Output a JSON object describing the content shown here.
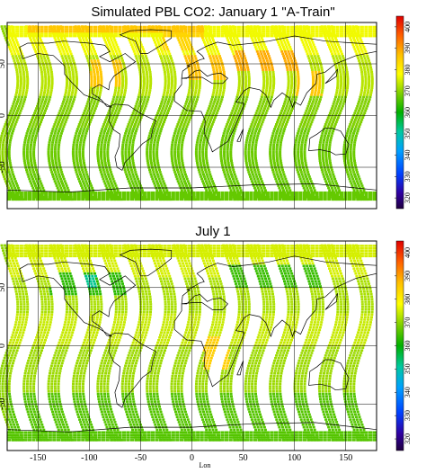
{
  "chart_data": [
    {
      "type": "heatmap",
      "title": "Simulated PBL CO2: January 1 \"A-Train\"",
      "xlim": [
        -180,
        180
      ],
      "ylim": [
        -90,
        90
      ],
      "xticks": [],
      "yticks": [
        "-50",
        "0",
        "50"
      ],
      "grid": true,
      "colorbar": {
        "ticks": [
          "320",
          "330",
          "340",
          "350",
          "360",
          "370",
          "380",
          "390",
          "400"
        ],
        "range": [
          315,
          405
        ]
      },
      "swath_count": 15,
      "regions": [
        {
          "lon": [
            -180,
            180
          ],
          "lat": [
            -80,
            -55
          ],
          "value": 367
        },
        {
          "lon": [
            -180,
            180
          ],
          "lat": [
            -55,
            -10
          ],
          "value": 367.5
        },
        {
          "lon": [
            -180,
            180
          ],
          "lat": [
            -10,
            20
          ],
          "value": 369
        },
        {
          "lon": [
            -180,
            180
          ],
          "lat": [
            20,
            60
          ],
          "value": 373
        },
        {
          "lon": [
            -180,
            180
          ],
          "lat": [
            60,
            90
          ],
          "value": 377
        },
        {
          "lon": [
            -100,
            -70
          ],
          "lat": [
            30,
            55
          ],
          "value": 386
        },
        {
          "lon": [
            -10,
            40
          ],
          "lat": [
            35,
            60
          ],
          "value": 387
        },
        {
          "lon": [
            40,
            110
          ],
          "lat": [
            45,
            65
          ],
          "value": 389
        },
        {
          "lon": [
            100,
            125
          ],
          "lat": [
            20,
            45
          ],
          "value": 386
        },
        {
          "lon": [
            -30,
            10
          ],
          "lat": [
            65,
            82
          ],
          "value": 384
        },
        {
          "lon": [
            -160,
            10
          ],
          "lat": [
            82,
            90
          ],
          "value": 386
        }
      ]
    },
    {
      "type": "heatmap",
      "title": "July 1",
      "xlim": [
        -180,
        180
      ],
      "ylim": [
        -90,
        90
      ],
      "xticks": [
        "-150",
        "-100",
        "-50",
        "0",
        "50",
        "100",
        "150"
      ],
      "yticks": [
        "-50",
        "0",
        "50"
      ],
      "xlabel": "Lon",
      "grid": true,
      "colorbar": {
        "ticks": [
          "320",
          "330",
          "340",
          "350",
          "360",
          "370",
          "380",
          "390",
          "400"
        ],
        "range": [
          315,
          405
        ]
      },
      "swath_count": 15,
      "regions": [
        {
          "lon": [
            -180,
            180
          ],
          "lat": [
            -80,
            -40
          ],
          "value": 366
        },
        {
          "lon": [
            -180,
            180
          ],
          "lat": [
            -40,
            0
          ],
          "value": 371
        },
        {
          "lon": [
            -180,
            180
          ],
          "lat": [
            0,
            30
          ],
          "value": 374
        },
        {
          "lon": [
            -180,
            180
          ],
          "lat": [
            30,
            60
          ],
          "value": 372
        },
        {
          "lon": [
            -180,
            180
          ],
          "lat": [
            60,
            90
          ],
          "value": 375
        },
        {
          "lon": [
            -140,
            -60
          ],
          "lat": [
            45,
            65
          ],
          "value": 363
        },
        {
          "lon": [
            30,
            130
          ],
          "lat": [
            50,
            70
          ],
          "value": 364
        },
        {
          "lon": [
            -115,
            -95
          ],
          "lat": [
            52,
            62
          ],
          "value": 352
        },
        {
          "lon": [
            10,
            35
          ],
          "lat": [
            -20,
            10
          ],
          "value": 385
        }
      ]
    }
  ]
}
